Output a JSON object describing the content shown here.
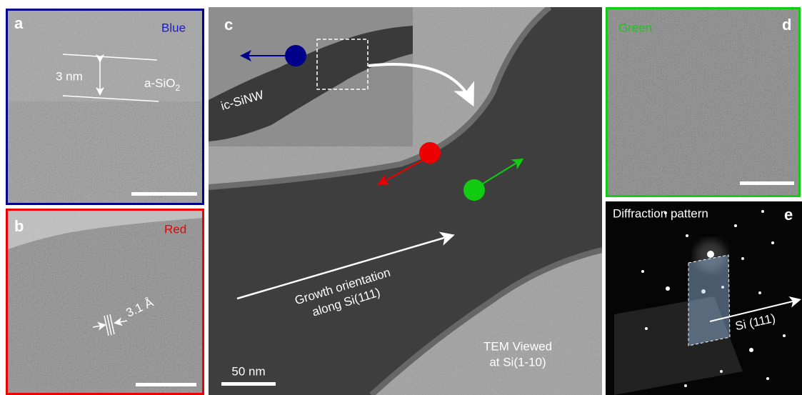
{
  "panels": {
    "a": {
      "label": "a",
      "tag": "Blue",
      "thickness": "3 nm",
      "layer": {
        "text": "a-SiO",
        "sub": "2"
      }
    },
    "b": {
      "label": "b",
      "tag": "Red",
      "spacing": "3.1 Å"
    },
    "c": {
      "label": "c",
      "wire": "ic-SiNW",
      "growth": [
        "Growth orientation",
        "along Si(111)"
      ],
      "view": [
        "TEM Viewed",
        "at Si(1-10)"
      ],
      "scale": "50 nm"
    },
    "d": {
      "label": "d",
      "tag": "Green"
    },
    "e": {
      "label": "e",
      "title": "Diffraction pattern",
      "direction": "Si (111)"
    }
  }
}
